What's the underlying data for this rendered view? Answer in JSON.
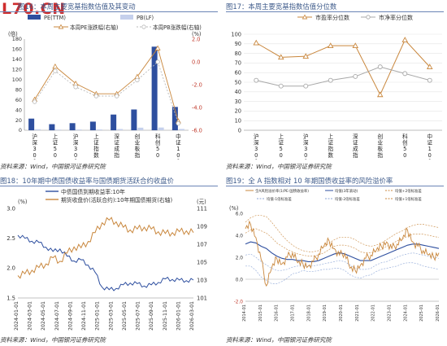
{
  "watermark": "L70.CN",
  "panels": {
    "p16": {
      "title": "图16：本周主要宽基指数估值及其变动",
      "source": "资料来源：Wind，中国银河证券研究院",
      "chart_data": {
        "type": "bar",
        "categories": [
          "沪深300",
          "上证50",
          "沪深300",
          "上证指数",
          "深证成指",
          "创业板指",
          "科创50",
          "中证1000"
        ],
        "left_unit": "(倍)",
        "right_unit": "(%)",
        "left_ylim": [
          0,
          180
        ],
        "left_ticks": [
          0,
          20,
          40,
          60,
          80,
          100,
          120,
          140,
          160,
          180
        ],
        "right_ylim": [
          -6.0,
          2.0
        ],
        "right_ticks": [
          -6.0,
          -4.0,
          -2.0,
          0.0,
          2.0
        ],
        "right_tick_labels": [
          "-6.0",
          "-4.0",
          "-2.0",
          "0.0",
          "2.0"
        ],
        "series": [
          {
            "name": "PE(TTM)",
            "axis": "left",
            "kind": "bar",
            "color": "#2e4f9f",
            "values": [
              23,
              12,
              14,
              17,
              31,
              41,
              165,
              46
            ]
          },
          {
            "name": "PB(LF)",
            "axis": "left",
            "kind": "bar",
            "color": "#c5d0ec",
            "values": [
              2.0,
              1.3,
              1.5,
              1.6,
              2.4,
              5.1,
              5.4,
              2.6
            ]
          },
          {
            "name": "本周PE涨跌幅(右轴)",
            "axis": "right",
            "kind": "line",
            "color": "#c9873d",
            "marker": "triangle",
            "values": [
              -3.3,
              -0.4,
              -1.9,
              -2.8,
              -2.8,
              -1.3,
              1.2,
              -5.2
            ]
          },
          {
            "name": "本周PB涨跌幅(右轴)",
            "axis": "right",
            "kind": "line",
            "color": "#b9b9b9",
            "marker": "circle",
            "values": [
              -3.5,
              -0.8,
              -2.2,
              -3.0,
              -3.0,
              -1.6,
              0.0,
              -5.4
            ]
          }
        ],
        "legend": "top",
        "grid": false
      }
    },
    "p17": {
      "title": "图17：本周主要宽基指数估值分位数",
      "source": "资料来源：Wind，中国银河证券研究院",
      "chart_data": {
        "type": "line",
        "categories": [
          "沪深300",
          "上证50",
          "沪深300",
          "上证指数",
          "深证成指",
          "创业板指",
          "科创50",
          "中证1000"
        ],
        "ylim": [
          0,
          100
        ],
        "yticks": [
          0,
          10,
          20,
          30,
          40,
          50,
          60,
          70,
          80,
          90,
          100
        ],
        "series": [
          {
            "name": "市盈率分位数",
            "color": "#c9873d",
            "marker": "triangle",
            "values": [
              91,
              76,
              77,
              88,
              88,
              37,
              94,
              66
            ]
          },
          {
            "name": "市净率分位数",
            "color": "#a8a8a8",
            "marker": "circle",
            "values": [
              52,
              46,
              46,
              52,
              56,
              66,
              59,
              52
            ]
          }
        ],
        "legend": "top",
        "grid": true
      }
    },
    "p18": {
      "title": "图18：10年期中债国债收益率与国债期货活跃合约收盘价",
      "source": "资料来源：Wind，中国银河证券研究院",
      "chart_data": {
        "type": "line",
        "left_unit": "(%)",
        "right_unit": "(元)",
        "x_labels": [
          "2024-01-01",
          "2024-03-01",
          "2024-05-01",
          "2024-07-01",
          "2024-09-01",
          "2024-11-01",
          "2025-01-01",
          "2025-03-01",
          "2025-05-01",
          "2025-07-01",
          "2025-09-01",
          "2025-11-01",
          "2026-01-01",
          "2026-03-01"
        ],
        "left_ylim": [
          1.5,
          3.0
        ],
        "left_ticks": [
          "1.5",
          "2.0",
          "2.5",
          "3.0"
        ],
        "right_ylim": [
          101,
          111
        ],
        "right_ticks": [
          "101",
          "103",
          "105",
          "107",
          "109",
          "111"
        ],
        "series": [
          {
            "name": "中债国债到期收益率:10年",
            "axis": "left",
            "color": "#2e4f9f",
            "values": [
              2.55,
              2.5,
              2.45,
              2.43,
              2.35,
              2.28,
              2.32,
              2.2,
              2.12,
              2.14,
              2.05,
              1.93,
              1.68,
              1.64,
              1.66,
              1.72,
              1.75,
              1.74,
              1.7,
              1.72,
              1.76,
              1.82,
              1.81,
              1.8,
              1.79,
              1.8
            ]
          },
          {
            "name": "期货收盘价(活跃合约):10年期国债期货(右轴)",
            "axis": "right",
            "color": "#c9873d",
            "values": [
              103.5,
              103.7,
              104.1,
              104.4,
              104.8,
              105.5,
              105.1,
              106.0,
              106.7,
              106.6,
              107.3,
              108.3,
              109.4,
              109.7,
              109.5,
              108.9,
              108.6,
              108.7,
              108.9,
              108.7,
              108.4,
              108.2,
              108.3,
              108.4,
              108.5,
              108.3
            ]
          }
        ],
        "legend": "top",
        "grid": false
      }
    },
    "p19": {
      "title": "图19：全 A 指数相对 10 年期国债收益率的风险溢价率",
      "source": "资料来源：Wind，中国银河证券研究院",
      "chart_data": {
        "type": "line",
        "unit": "(%)",
        "ylim": [
          -2.0,
          6.0
        ],
        "yticks": [
          "-2.0",
          "0.0",
          "2.0",
          "4.0",
          "6.0"
        ],
        "x_labels": [
          "2014-01",
          "2015-01",
          "2016-01",
          "2017-01",
          "2018-01",
          "2019-01",
          "2020-01",
          "2021-01",
          "2022-01",
          "2023-01",
          "2024-01",
          "2025-01",
          "2026-01"
        ],
        "legend_labels": [
          "全A风险溢价率(1/PE-国债收益率)",
          "均值(3年滚动)",
          "均值+2倍标准差",
          "均值-1倍标准差",
          "均值-2倍标准差",
          "均值+1倍标准差"
        ],
        "series": [
          {
            "name": "全A风险溢价率(1/PE-国债收益率)",
            "color": "#c9873d",
            "values": [
              4.6,
              5.0,
              3.8,
              1.8,
              -0.6,
              1.0,
              1.9,
              1.4,
              2.0,
              2.4,
              1.5,
              1.4,
              1.2,
              1.6,
              2.3,
              3.0,
              3.5,
              2.8,
              2.2,
              2.4,
              1.0,
              0.8,
              1.3,
              1.9,
              2.2,
              2.6,
              3.0,
              3.4,
              2.8,
              3.2,
              3.6,
              4.5,
              3.4,
              3.0,
              2.6,
              2.2,
              2.0,
              2.4
            ]
          },
          {
            "name": "均值(3年滚动)",
            "color": "#2e4f9f",
            "values": [
              3.2,
              3.4,
              3.3,
              3.0,
              2.8,
              2.4,
              2.1,
              1.9,
              1.8,
              1.8,
              1.7,
              1.7,
              1.6,
              1.6,
              1.7,
              1.9,
              2.1,
              2.3,
              2.4,
              2.3,
              2.1,
              1.9,
              1.7,
              1.7,
              1.7,
              1.9,
              2.1,
              2.3,
              2.5,
              2.7,
              2.9,
              3.1,
              3.2,
              3.2,
              3.1,
              3.0,
              2.9,
              2.8
            ]
          },
          {
            "name": "均值+2倍标准差",
            "color": "#c9873d",
            "values": [
              5.2,
              5.6,
              5.8,
              5.8,
              5.7,
              5.2,
              4.6,
              4.0,
              3.5,
              3.1,
              2.8,
              2.6,
              2.5,
              2.5,
              2.6,
              2.9,
              3.3,
              3.6,
              3.8,
              3.8,
              3.8,
              3.6,
              3.3,
              3.1,
              3.0,
              3.1,
              3.3,
              3.6,
              3.9,
              4.2,
              4.4,
              4.7,
              4.9,
              5.0,
              5.0,
              4.9,
              4.8,
              4.7
            ]
          },
          {
            "name": "均值-1倍标准差",
            "color": "#8aa3d6",
            "values": [
              2.2,
              2.3,
              2.0,
              1.6,
              1.3,
              1.0,
              0.8,
              0.8,
              0.9,
              1.1,
              1.2,
              1.2,
              1.2,
              1.2,
              1.3,
              1.4,
              1.5,
              1.6,
              1.7,
              1.6,
              1.3,
              1.0,
              0.9,
              0.9,
              1.0,
              1.3,
              1.5,
              1.6,
              1.8,
              2.0,
              2.2,
              2.3,
              2.4,
              2.3,
              2.2,
              2.1,
              2.0,
              1.9
            ]
          },
          {
            "name": "均值-2倍标准差",
            "color": "#8aa3d6",
            "values": [
              1.2,
              1.2,
              0.8,
              0.2,
              -0.1,
              -0.4,
              -0.4,
              -0.2,
              0.1,
              0.5,
              0.6,
              0.8,
              0.7,
              0.7,
              0.8,
              0.9,
              0.9,
              1.0,
              1.0,
              0.8,
              0.4,
              0.2,
              0.1,
              0.3,
              0.4,
              0.7,
              0.9,
              1.0,
              1.1,
              1.2,
              1.4,
              1.5,
              1.5,
              1.4,
              1.2,
              1.1,
              1.0,
              0.9
            ]
          },
          {
            "name": "均值+1倍标准差",
            "color": "#c9873d",
            "values": [
              4.2,
              4.5,
              4.6,
              4.4,
              4.2,
              3.8,
              3.3,
              3.0,
              2.7,
              2.5,
              2.3,
              2.2,
              2.1,
              2.1,
              2.2,
              2.4,
              2.7,
              3.0,
              3.1,
              3.1,
              3.0,
              2.8,
              2.5,
              2.4,
              2.4,
              2.5,
              2.7,
              3.0,
              3.2,
              3.5,
              3.7,
              3.9,
              4.1,
              4.1,
              4.1,
              4.0,
              3.9,
              3.8
            ]
          }
        ],
        "legend": "top",
        "grid": false
      }
    }
  }
}
